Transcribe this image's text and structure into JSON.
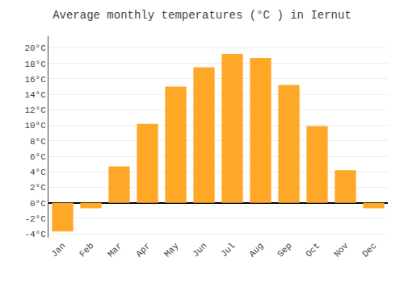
{
  "chart_data": {
    "type": "bar",
    "title": "Average monthly temperatures (°C ) in Iernut",
    "categories": [
      "Jan",
      "Feb",
      "Mar",
      "Apr",
      "May",
      "Jun",
      "Jul",
      "Aug",
      "Sep",
      "Oct",
      "Nov",
      "Dec"
    ],
    "values": [
      -3.7,
      -0.7,
      4.7,
      10.2,
      15.0,
      17.5,
      19.2,
      18.7,
      15.2,
      9.9,
      4.2,
      -0.7
    ],
    "color": "#FFA726",
    "ylim": [
      -4.5,
      21.5
    ],
    "yticks": [
      {
        "value": -4,
        "label": "-4°C"
      },
      {
        "value": -2,
        "label": "-2°C"
      },
      {
        "value": 0,
        "label": "0°C"
      },
      {
        "value": 2,
        "label": "2°C"
      },
      {
        "value": 4,
        "label": "4°C"
      },
      {
        "value": 6,
        "label": "6°C"
      },
      {
        "value": 8,
        "label": "8°C"
      },
      {
        "value": 10,
        "label": "10°C"
      },
      {
        "value": 12,
        "label": "12°C"
      },
      {
        "value": 14,
        "label": "14°C"
      },
      {
        "value": 16,
        "label": "16°C"
      },
      {
        "value": 18,
        "label": "18°C"
      },
      {
        "value": 20,
        "label": "20°C"
      }
    ],
    "grid": true
  }
}
